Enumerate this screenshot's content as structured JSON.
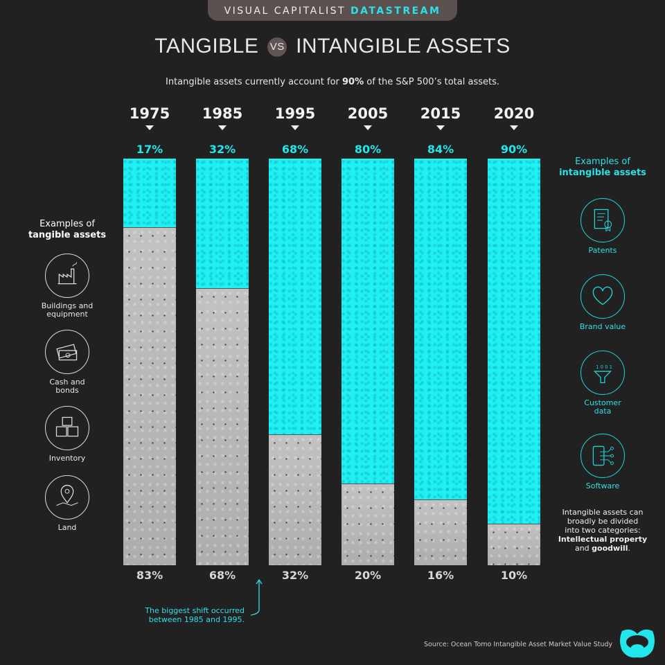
{
  "brand": {
    "prefix": "VISUAL CAPITALIST",
    "suffix": "DATASTREAM"
  },
  "title": {
    "left": "TANGIBLE",
    "vs": "VS",
    "right": "INTANGIBLE ASSETS"
  },
  "subtitle": {
    "before": "Intangible assets currently account for ",
    "bold": "90%",
    "after": " of the S&P 500’s total assets."
  },
  "chart_data": {
    "type": "bar",
    "stacked": true,
    "normalized": true,
    "categories": [
      "1975",
      "1985",
      "1995",
      "2005",
      "2015",
      "2020"
    ],
    "series": [
      {
        "name": "Intangible",
        "values": [
          17,
          32,
          68,
          80,
          84,
          90
        ],
        "labels": [
          "17%",
          "32%",
          "68%",
          "80%",
          "84%",
          "90%"
        ],
        "color": "#1ff0f3"
      },
      {
        "name": "Tangible",
        "values": [
          83,
          68,
          32,
          20,
          16,
          10
        ],
        "labels": [
          "83%",
          "68%",
          "32%",
          "20%",
          "16%",
          "10%"
        ],
        "color": "#b9b9b9"
      }
    ],
    "ylim": [
      0,
      100
    ]
  },
  "tangible": {
    "heading_1": "Examples of",
    "heading_2": "tangible assets",
    "items": [
      {
        "label_1": "Buildings and",
        "label_2": "equipment",
        "icon": "factory-icon"
      },
      {
        "label_1": "Cash and",
        "label_2": "bonds",
        "icon": "cash-icon"
      },
      {
        "label_1": "Inventory",
        "label_2": "",
        "icon": "boxes-icon"
      },
      {
        "label_1": "Land",
        "label_2": "",
        "icon": "map-pin-icon"
      }
    ]
  },
  "intangible": {
    "heading_1": "Examples of",
    "heading_2": "intangible assets",
    "items": [
      {
        "label_1": "Patents",
        "label_2": "",
        "icon": "certificate-icon"
      },
      {
        "label_1": "Brand value",
        "label_2": "",
        "icon": "heart-icon"
      },
      {
        "label_1": "Customer",
        "label_2": "data",
        "icon": "data-funnel-icon"
      },
      {
        "label_1": "Software",
        "label_2": "",
        "icon": "phone-circuit-icon"
      }
    ]
  },
  "note": {
    "l1": "Intangible assets can",
    "l2": "broadly be divided",
    "l3": "into two categories:",
    "bold1": "Intellectual property",
    "l4": "and ",
    "bold2": "goodwill",
    "end": "."
  },
  "annotation": {
    "l1": "The biggest shift occurred",
    "l2": "between 1985 and 1995."
  },
  "source": "Source: Ocean Tomo Intangible Asset Market Value Study",
  "colors": {
    "accent": "#22e6ec",
    "background": "#212121"
  }
}
